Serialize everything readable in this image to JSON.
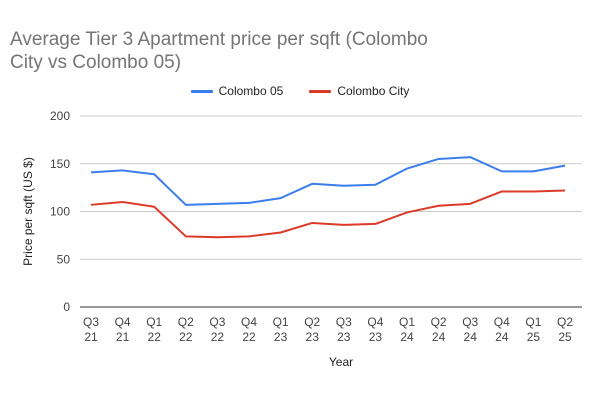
{
  "chart_data": {
    "type": "line",
    "title": "Average Tier 3 Apartment price per sqft (Colombo City vs Colombo 05)",
    "xlabel": "Year",
    "ylabel": "Price per sqft (US $)",
    "ylim": [
      0,
      200
    ],
    "yticks": [
      "0",
      "50",
      "100",
      "150",
      "200"
    ],
    "grid": true,
    "legend_position": "top",
    "categories": [
      [
        "Q3",
        "21"
      ],
      [
        "Q4",
        "21"
      ],
      [
        "Q1",
        "22"
      ],
      [
        "Q2",
        "22"
      ],
      [
        "Q3",
        "22"
      ],
      [
        "Q4",
        "22"
      ],
      [
        "Q1",
        "23"
      ],
      [
        "Q2",
        "23"
      ],
      [
        "Q3",
        "23"
      ],
      [
        "Q4",
        "23"
      ],
      [
        "Q1",
        "24"
      ],
      [
        "Q2",
        "24"
      ],
      [
        "Q3",
        "24"
      ],
      [
        "Q4",
        "24"
      ],
      [
        "Q1",
        "25"
      ],
      [
        "Q2",
        "25"
      ]
    ],
    "series": [
      {
        "name": "Colombo 05",
        "color": "#3b7ded",
        "values": [
          141,
          143,
          139,
          107,
          108,
          109,
          114,
          129,
          127,
          128,
          145,
          155,
          157,
          142,
          142,
          148
        ]
      },
      {
        "name": "Colombo City",
        "color": "#dc3b2a",
        "values": [
          107,
          110,
          105,
          74,
          73,
          74,
          78,
          88,
          86,
          87,
          99,
          106,
          108,
          121,
          121,
          122
        ]
      }
    ]
  }
}
